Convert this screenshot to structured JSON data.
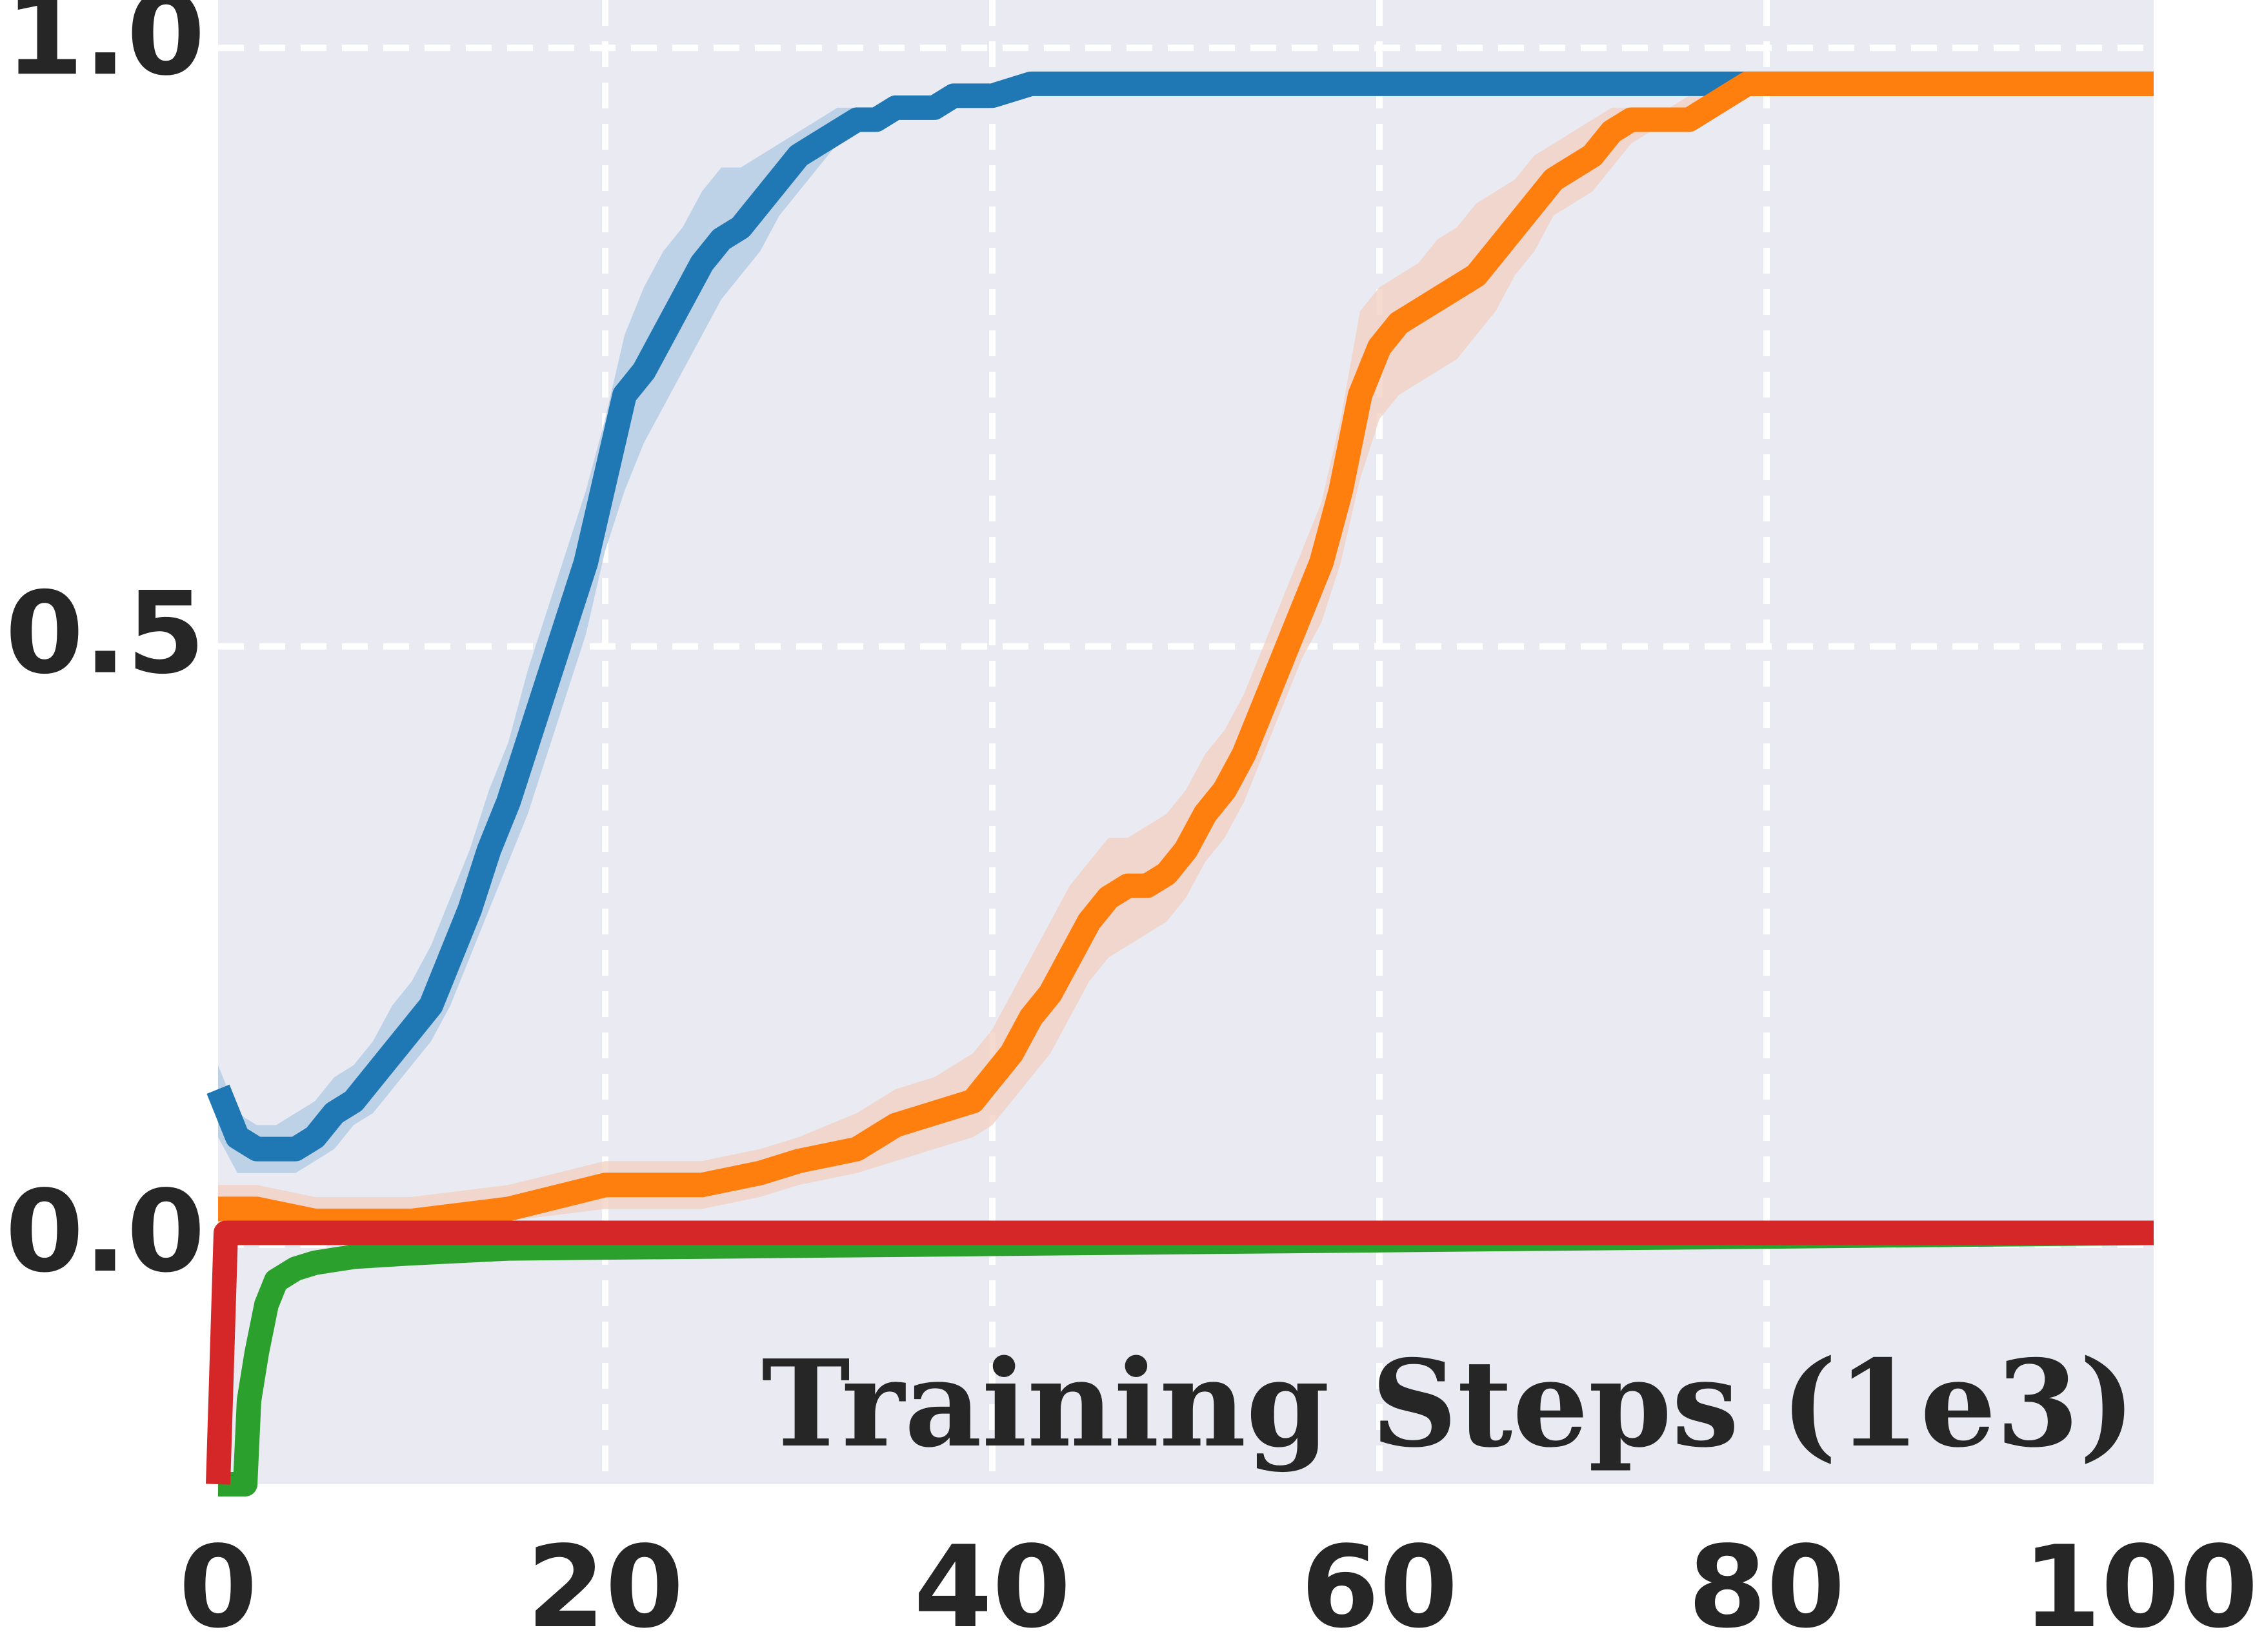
{
  "chart_data": {
    "type": "line",
    "title": "",
    "xlabel": "Training Steps (1e3)",
    "ylabel": "",
    "xlim": [
      0,
      100
    ],
    "ylim": [
      -0.2,
      1.04
    ],
    "xticks": [
      "0",
      "20",
      "40",
      "60",
      "80",
      "100"
    ],
    "yticks": [
      "0.0",
      "0.5",
      "1.0"
    ],
    "grid": true,
    "background": "#e9eaf2",
    "grid_color": "#ffffff",
    "series": [
      {
        "color": "#1f77b4",
        "band_color": "#aec8e3",
        "x": [
          0,
          1,
          2,
          3,
          4,
          5,
          6,
          7,
          8,
          9,
          10,
          11,
          12,
          13,
          14,
          15,
          16,
          17,
          18,
          19,
          20,
          21,
          22,
          23,
          24,
          25,
          26,
          27,
          28,
          29,
          30,
          31,
          32,
          33,
          34,
          35,
          36,
          37,
          38,
          39,
          40,
          42,
          45,
          50,
          60,
          70,
          80,
          90,
          100
        ],
        "y": [
          0.13,
          0.09,
          0.08,
          0.08,
          0.08,
          0.09,
          0.11,
          0.12,
          0.14,
          0.16,
          0.18,
          0.2,
          0.24,
          0.28,
          0.33,
          0.37,
          0.42,
          0.47,
          0.52,
          0.57,
          0.64,
          0.71,
          0.73,
          0.76,
          0.79,
          0.82,
          0.84,
          0.85,
          0.87,
          0.89,
          0.91,
          0.92,
          0.93,
          0.94,
          0.94,
          0.95,
          0.95,
          0.95,
          0.96,
          0.96,
          0.96,
          0.97,
          0.97,
          0.97,
          0.97,
          0.97,
          0.97,
          0.97,
          0.97
        ],
        "lower": [
          0.09,
          0.06,
          0.06,
          0.06,
          0.06,
          0.07,
          0.08,
          0.1,
          0.11,
          0.13,
          0.15,
          0.17,
          0.2,
          0.24,
          0.28,
          0.32,
          0.36,
          0.41,
          0.46,
          0.51,
          0.58,
          0.63,
          0.67,
          0.7,
          0.73,
          0.76,
          0.79,
          0.81,
          0.83,
          0.86,
          0.88,
          0.9,
          0.92,
          0.93,
          0.93,
          0.94,
          0.95,
          0.95,
          0.95,
          0.96,
          0.96,
          0.97,
          0.97,
          0.97,
          0.97,
          0.97,
          0.97,
          0.97,
          0.97
        ],
        "upper": [
          0.15,
          0.11,
          0.1,
          0.1,
          0.11,
          0.12,
          0.14,
          0.15,
          0.17,
          0.2,
          0.22,
          0.25,
          0.29,
          0.33,
          0.38,
          0.42,
          0.48,
          0.53,
          0.58,
          0.63,
          0.69,
          0.76,
          0.8,
          0.83,
          0.85,
          0.88,
          0.9,
          0.9,
          0.91,
          0.92,
          0.93,
          0.94,
          0.95,
          0.95,
          0.95,
          0.96,
          0.96,
          0.96,
          0.96,
          0.97,
          0.97,
          0.97,
          0.97,
          0.97,
          0.97,
          0.97,
          0.97,
          0.97,
          0.97
        ]
      },
      {
        "color": "#ff7f0e",
        "band_color": "#f2cfbf",
        "x": [
          0,
          2,
          5,
          10,
          15,
          20,
          25,
          28,
          30,
          33,
          35,
          37,
          39,
          40,
          41,
          42,
          43,
          44,
          45,
          46,
          47,
          48,
          49,
          50,
          51,
          52,
          53,
          54,
          55,
          56,
          57,
          58,
          59,
          60,
          61,
          62,
          63,
          64,
          65,
          66,
          67,
          68,
          69,
          70,
          71,
          72,
          73,
          74,
          75,
          76,
          77,
          78,
          79,
          80,
          90,
          100
        ],
        "y": [
          0.03,
          0.03,
          0.02,
          0.02,
          0.03,
          0.05,
          0.05,
          0.06,
          0.07,
          0.08,
          0.1,
          0.11,
          0.12,
          0.14,
          0.16,
          0.19,
          0.21,
          0.24,
          0.27,
          0.29,
          0.3,
          0.3,
          0.31,
          0.33,
          0.36,
          0.38,
          0.41,
          0.45,
          0.49,
          0.53,
          0.57,
          0.63,
          0.71,
          0.75,
          0.77,
          0.78,
          0.79,
          0.8,
          0.81,
          0.83,
          0.85,
          0.87,
          0.89,
          0.9,
          0.91,
          0.93,
          0.94,
          0.94,
          0.94,
          0.94,
          0.95,
          0.96,
          0.97,
          0.97,
          0.97,
          0.97
        ],
        "lower": [
          0.01,
          0.01,
          0.01,
          0.01,
          0.02,
          0.03,
          0.03,
          0.04,
          0.05,
          0.06,
          0.07,
          0.08,
          0.09,
          0.1,
          0.12,
          0.14,
          0.16,
          0.19,
          0.22,
          0.24,
          0.25,
          0.26,
          0.27,
          0.29,
          0.32,
          0.34,
          0.37,
          0.41,
          0.45,
          0.49,
          0.52,
          0.57,
          0.64,
          0.69,
          0.71,
          0.72,
          0.73,
          0.74,
          0.76,
          0.78,
          0.81,
          0.83,
          0.86,
          0.87,
          0.88,
          0.9,
          0.92,
          0.93,
          0.93,
          0.93,
          0.94,
          0.95,
          0.96,
          0.97,
          0.97,
          0.97
        ],
        "upper": [
          0.05,
          0.05,
          0.04,
          0.04,
          0.05,
          0.07,
          0.07,
          0.08,
          0.09,
          0.11,
          0.13,
          0.14,
          0.16,
          0.18,
          0.21,
          0.24,
          0.27,
          0.3,
          0.32,
          0.34,
          0.34,
          0.35,
          0.36,
          0.38,
          0.41,
          0.43,
          0.46,
          0.5,
          0.54,
          0.58,
          0.62,
          0.69,
          0.78,
          0.8,
          0.81,
          0.82,
          0.84,
          0.85,
          0.87,
          0.88,
          0.89,
          0.91,
          0.92,
          0.93,
          0.94,
          0.95,
          0.95,
          0.95,
          0.95,
          0.96,
          0.96,
          0.97,
          0.97,
          0.97,
          0.97,
          0.97
        ]
      },
      {
        "color": "#2ca02c",
        "band_color": "#b7dcb2",
        "x": [
          0,
          1.4,
          1.6,
          2,
          2.5,
          3,
          4,
          5,
          7,
          10,
          15,
          100
        ],
        "y": [
          -0.2,
          -0.2,
          -0.13,
          -0.09,
          -0.05,
          -0.03,
          -0.02,
          -0.015,
          -0.01,
          -0.007,
          -0.003,
          0.01
        ],
        "lower": [
          -0.2,
          -0.2,
          -0.16,
          -0.11,
          -0.07,
          -0.04,
          -0.03,
          -0.02,
          -0.015,
          -0.01,
          -0.005,
          0.0
        ],
        "upper": [
          -0.2,
          -0.2,
          -0.1,
          -0.06,
          -0.03,
          -0.02,
          -0.01,
          -0.008,
          -0.005,
          -0.003,
          0.0,
          0.015
        ]
      },
      {
        "color": "#d62728",
        "band_color": "#f0b6b6",
        "x": [
          0,
          0.4,
          0.6,
          100
        ],
        "y": [
          -0.2,
          0.01,
          0.01,
          0.01
        ]
      }
    ]
  }
}
